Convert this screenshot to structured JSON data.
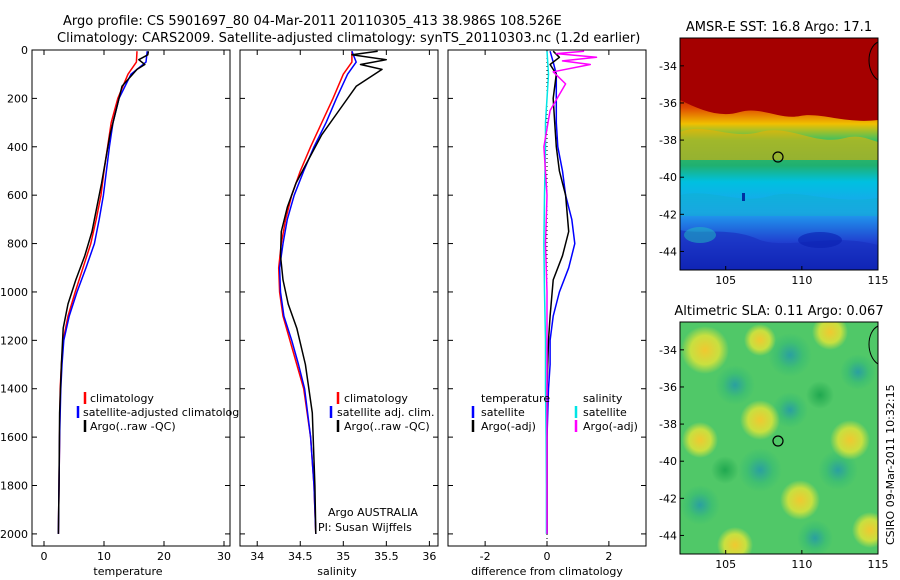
{
  "title_line1": "Argo profile: CS 5901697_80 04-Mar-2011 20110305_413 38.986S 108.526E",
  "title_line2": "Climatology: CARS2009. Satellite-adjusted climatology: synTS_20110303.nc (1.2d earlier)",
  "footer_vertical": "CSIRO 09-Mar-2011 10:32:15",
  "colors": {
    "red": "#ff0000",
    "blue": "#0000ff",
    "black": "#000000",
    "cyan": "#00e5e5",
    "magenta": "#ff00ff"
  },
  "chart_data": [
    {
      "type": "line",
      "xlabel": "temperature",
      "xlim": [
        -2,
        31
      ],
      "xticks": [
        0,
        10,
        20,
        30
      ],
      "ylim": [
        2050,
        0
      ],
      "yticks": [
        0,
        200,
        400,
        600,
        800,
        1000,
        1200,
        1400,
        1600,
        1800,
        2000
      ],
      "legend": {
        "placement": "bottom-right",
        "entries": [
          "climatology",
          "satellite-adjusted climatology",
          "Argo(..raw -QC)"
        ]
      },
      "series": [
        {
          "name": "climatology",
          "color": "red",
          "x": [
            15.5,
            15.4,
            14.0,
            12.3,
            11.2,
            10.6,
            10.0,
            9.5,
            8.7,
            7.8,
            6.5,
            5.2,
            4.0,
            3.2,
            2.9,
            2.7,
            2.6,
            2.5,
            2.4
          ],
          "y": [
            5,
            50,
            100,
            200,
            300,
            400,
            500,
            600,
            700,
            800,
            900,
            1000,
            1100,
            1200,
            1300,
            1400,
            1600,
            1800,
            2000
          ]
        },
        {
          "name": "satellite-adjusted climatology",
          "color": "blue",
          "x": [
            17.2,
            17.0,
            14.5,
            12.5,
            11.5,
            10.9,
            10.4,
            9.9,
            9.2,
            8.4,
            7.0,
            5.5,
            4.2,
            3.3,
            3.0,
            2.8,
            2.6,
            2.5,
            2.4
          ],
          "y": [
            5,
            50,
            100,
            200,
            300,
            400,
            500,
            600,
            700,
            800,
            900,
            1000,
            1100,
            1200,
            1300,
            1400,
            1600,
            1800,
            2000
          ]
        },
        {
          "name": "Argo(..raw -QC)",
          "color": "black",
          "x": [
            17.4,
            17.3,
            15.8,
            16.8,
            15.5,
            13.0,
            12.0,
            11.0,
            10.3,
            9.6,
            8.8,
            8.0,
            6.8,
            5.3,
            4.0,
            3.2,
            2.9,
            2.6,
            2.5,
            2.4
          ],
          "y": [
            5,
            20,
            40,
            60,
            80,
            150,
            250,
            350,
            450,
            550,
            650,
            750,
            850,
            950,
            1050,
            1150,
            1300,
            1500,
            1800,
            2000
          ]
        }
      ]
    },
    {
      "type": "line",
      "xlabel": "salinity",
      "xlim": [
        33.8,
        36.1
      ],
      "xticks": [
        34,
        34.5,
        35,
        35.5,
        36
      ],
      "ylim": [
        2050,
        0
      ],
      "legend": {
        "placement": "bottom-right",
        "entries": [
          "climatology",
          "satellite adj. clim.",
          "Argo(..raw -QC)"
        ]
      },
      "annotations": [
        "Argo AUSTRALIA",
        "PI: Susan Wijffels"
      ],
      "series": [
        {
          "name": "climatology",
          "color": "red",
          "x": [
            35.1,
            35.1,
            35.0,
            34.88,
            34.75,
            34.62,
            34.5,
            34.4,
            34.33,
            34.28,
            34.25,
            34.26,
            34.3,
            34.38,
            34.46,
            34.54,
            34.62,
            34.66,
            34.68
          ],
          "y": [
            5,
            50,
            100,
            200,
            300,
            400,
            500,
            600,
            700,
            800,
            900,
            1000,
            1100,
            1200,
            1300,
            1400,
            1600,
            1800,
            2000
          ]
        },
        {
          "name": "satellite adj. clim.",
          "color": "blue",
          "x": [
            35.1,
            35.15,
            35.05,
            34.92,
            34.8,
            34.66,
            34.54,
            34.43,
            34.35,
            34.3,
            34.26,
            34.27,
            34.31,
            34.4,
            34.48,
            34.55,
            34.62,
            34.66,
            34.68
          ],
          "y": [
            5,
            50,
            100,
            200,
            300,
            400,
            500,
            600,
            700,
            800,
            900,
            1000,
            1100,
            1200,
            1300,
            1400,
            1600,
            1800,
            2000
          ]
        },
        {
          "name": "Argo(..raw -QC)",
          "color": "black",
          "x": [
            35.4,
            35.1,
            35.5,
            35.2,
            35.45,
            35.15,
            34.95,
            34.75,
            34.6,
            34.45,
            34.35,
            34.28,
            34.27,
            34.3,
            34.36,
            34.46,
            34.56,
            34.64,
            34.67,
            34.68
          ],
          "y": [
            5,
            20,
            40,
            60,
            80,
            150,
            250,
            350,
            450,
            550,
            650,
            750,
            850,
            950,
            1050,
            1150,
            1300,
            1500,
            1800,
            2000
          ]
        }
      ]
    },
    {
      "type": "line",
      "xlabel": "difference from climatology",
      "xlim": [
        -3.2,
        3.2
      ],
      "xticks": [
        -2,
        0,
        2
      ],
      "ylim": [
        2050,
        0
      ],
      "legend": {
        "placement": "bottom",
        "columns": [
          {
            "heading": "temperature",
            "entries": [
              "satellite",
              "Argo(-adj)"
            ]
          },
          {
            "heading": "salinity",
            "entries": [
              "satellite",
              "Argo(-adj)"
            ]
          }
        ]
      },
      "series": [
        {
          "name": "temperature satellite",
          "color": "blue",
          "x": [
            0.1,
            0.2,
            0.3,
            0.3,
            0.3,
            0.35,
            0.5,
            0.6,
            0.8,
            0.9,
            0.7,
            0.4,
            0.2,
            0.1,
            0.1,
            0.05,
            0.0,
            0.0,
            0.0
          ],
          "y": [
            5,
            50,
            100,
            200,
            300,
            400,
            500,
            600,
            700,
            800,
            900,
            1000,
            1100,
            1200,
            1300,
            1400,
            1600,
            1800,
            2000
          ]
        },
        {
          "name": "temperature Argo(-adj)",
          "color": "black",
          "x": [
            0.2,
            0.4,
            0.1,
            0.3,
            0.2,
            0.25,
            0.3,
            0.4,
            0.6,
            0.7,
            0.5,
            0.2,
            0.1,
            0.05,
            0.0,
            0.0,
            0.0
          ],
          "y": [
            5,
            30,
            60,
            100,
            200,
            300,
            400,
            500,
            600,
            750,
            850,
            950,
            1100,
            1200,
            1400,
            1700,
            2000
          ]
        },
        {
          "name": "salinity satellite",
          "color": "cyan",
          "x": [
            0.0,
            0.05,
            0.0,
            -0.05,
            -0.05,
            -0.08,
            -0.1,
            -0.08,
            -0.05,
            -0.05,
            -0.03,
            -0.02,
            -0.02
          ],
          "y": [
            5,
            100,
            200,
            300,
            400,
            600,
            800,
            1000,
            1200,
            1400,
            1600,
            1800,
            2000
          ]
        },
        {
          "name": "salinity Argo(-adj)",
          "color": "magenta",
          "x": [
            1.2,
            0.3,
            1.6,
            0.5,
            1.4,
            0.2,
            0.6,
            0.1,
            -0.1,
            0.0,
            -0.05,
            0.0,
            0.0,
            0.0
          ],
          "y": [
            5,
            15,
            30,
            45,
            60,
            90,
            140,
            250,
            400,
            600,
            800,
            1000,
            1400,
            2000
          ]
        }
      ]
    },
    {
      "type": "heatmap",
      "title": "AMSR-E SST: 16.8 Argo: 17.1",
      "xlim": [
        102,
        115
      ],
      "ylim": [
        -45,
        -32.5
      ],
      "xticks": [
        105,
        110,
        115
      ],
      "yticks": [
        -34,
        -36,
        -38,
        -40,
        -42,
        -44
      ],
      "marker": {
        "x": 108.5,
        "y": -39.0
      }
    },
    {
      "type": "heatmap",
      "title": "Altimetric SLA: 0.11 Argo: 0.067",
      "xlim": [
        102,
        115
      ],
      "ylim": [
        -45,
        -32.5
      ],
      "xticks": [
        105,
        110,
        115
      ],
      "yticks": [
        -34,
        -36,
        -38,
        -40,
        -42,
        -44
      ],
      "marker": {
        "x": 108.5,
        "y": -39.0
      }
    }
  ]
}
